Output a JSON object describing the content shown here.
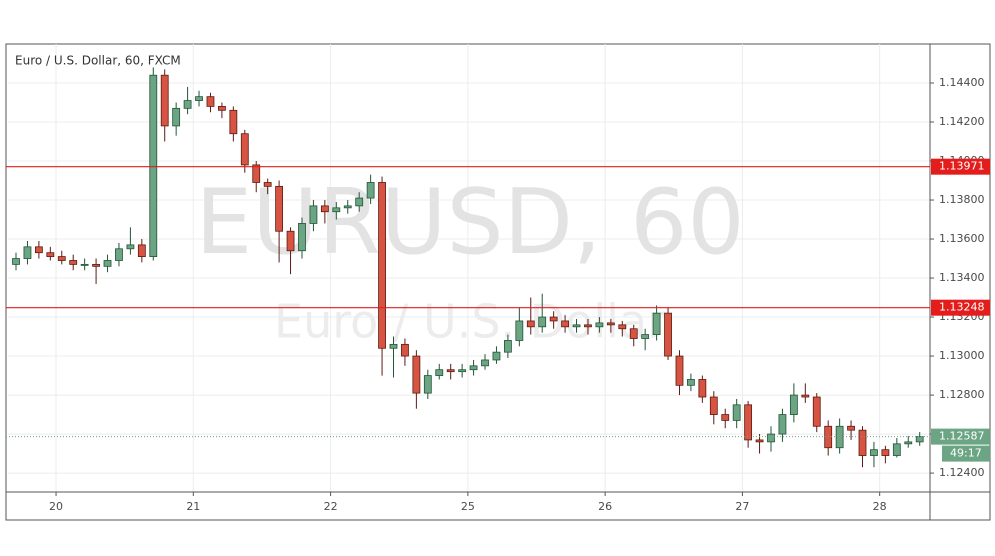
{
  "chart_data": {
    "type": "candlestick",
    "title": "Euro / U.S. Dollar, 60, FXCM",
    "watermark": [
      "EURUSD, 60",
      "Euro / U.S. Dollar"
    ],
    "x": [
      -7,
      -5,
      -3,
      -1,
      1,
      3,
      5,
      7,
      9,
      11,
      13,
      15,
      17,
      19,
      21,
      23,
      25,
      27,
      29,
      31,
      33,
      35,
      37,
      39,
      41,
      43,
      45,
      47,
      49,
      51,
      53,
      55,
      57,
      59,
      61,
      63,
      65,
      67,
      69,
      71,
      73,
      75,
      77,
      79,
      81,
      83,
      85,
      87,
      89,
      91,
      93,
      95,
      97,
      99,
      101,
      103,
      105,
      107,
      109,
      111,
      113,
      115,
      117,
      119,
      121,
      123,
      125,
      127,
      129,
      131,
      133,
      135,
      137,
      139,
      141,
      143,
      145,
      147,
      149,
      151
    ],
    "open": [
      1.1347,
      1.135,
      1.1356,
      1.1353,
      1.1351,
      1.1349,
      1.1347,
      1.1347,
      1.1346,
      1.1349,
      1.1355,
      1.1357,
      1.1351,
      1.1444,
      1.1418,
      1.1427,
      1.1431,
      1.1433,
      1.1428,
      1.1426,
      1.1414,
      1.1398,
      1.1389,
      1.1387,
      1.1364,
      1.1354,
      1.1368,
      1.1377,
      1.1374,
      1.1376,
      1.1377,
      1.1381,
      1.1389,
      1.1304,
      1.1306,
      1.13,
      1.1281,
      1.129,
      1.1293,
      1.1292,
      1.1293,
      1.1295,
      1.1298,
      1.1302,
      1.1308,
      1.1318,
      1.1315,
      1.132,
      1.1318,
      1.1315,
      1.1316,
      1.1315,
      1.1317,
      1.1316,
      1.1314,
      1.1309,
      1.1311,
      1.1322,
      1.13,
      1.1285,
      1.1288,
      1.1279,
      1.127,
      1.1267,
      1.1275,
      1.1257,
      1.1256,
      1.126,
      1.127,
      1.128,
      1.1279,
      1.1264,
      1.1253,
      1.1264,
      1.1262,
      1.1249,
      1.1252,
      1.1249,
      1.1255,
      1.1256
    ],
    "high": [
      1.1353,
      1.1359,
      1.1359,
      1.1356,
      1.1354,
      1.1352,
      1.135,
      1.135,
      1.1352,
      1.1358,
      1.1366,
      1.136,
      1.1448,
      1.1447,
      1.143,
      1.1438,
      1.1436,
      1.1435,
      1.143,
      1.1428,
      1.1416,
      1.14,
      1.1391,
      1.139,
      1.1366,
      1.1371,
      1.138,
      1.138,
      1.1379,
      1.138,
      1.1384,
      1.1393,
      1.1392,
      1.131,
      1.1309,
      1.1303,
      1.1293,
      1.1296,
      1.1296,
      1.1296,
      1.1298,
      1.1301,
      1.1305,
      1.1311,
      1.1325,
      1.133,
      1.1332,
      1.1323,
      1.1321,
      1.1319,
      1.1319,
      1.132,
      1.1319,
      1.1318,
      1.1316,
      1.1314,
      1.1326,
      1.1325,
      1.1303,
      1.1291,
      1.129,
      1.1282,
      1.1273,
      1.1278,
      1.1277,
      1.126,
      1.1264,
      1.1273,
      1.1286,
      1.1286,
      1.1281,
      1.1267,
      1.1268,
      1.1267,
      1.1264,
      1.1256,
      1.1254,
      1.1258,
      1.1259,
      1.1261
    ],
    "low": [
      1.1344,
      1.1347,
      1.135,
      1.1349,
      1.1347,
      1.1344,
      1.1344,
      1.1337,
      1.1343,
      1.1346,
      1.1352,
      1.1348,
      1.1349,
      1.141,
      1.1413,
      1.1424,
      1.1428,
      1.1425,
      1.1422,
      1.141,
      1.1394,
      1.1384,
      1.1383,
      1.1348,
      1.1342,
      1.135,
      1.1364,
      1.1368,
      1.137,
      1.1373,
      1.1374,
      1.1378,
      1.129,
      1.1289,
      1.1295,
      1.1273,
      1.1278,
      1.1288,
      1.1288,
      1.1289,
      1.129,
      1.1293,
      1.1296,
      1.1299,
      1.1305,
      1.1311,
      1.1312,
      1.1314,
      1.1312,
      1.1312,
      1.1311,
      1.1312,
      1.1312,
      1.131,
      1.1305,
      1.1303,
      1.1308,
      1.1298,
      1.128,
      1.1282,
      1.1276,
      1.1265,
      1.1263,
      1.1263,
      1.1253,
      1.125,
      1.1251,
      1.1256,
      1.1266,
      1.1276,
      1.1261,
      1.1249,
      1.125,
      1.1257,
      1.1243,
      1.1243,
      1.1245,
      1.1248,
      1.1253,
      1.1254
    ],
    "close": [
      1.135,
      1.1356,
      1.1353,
      1.1351,
      1.1349,
      1.1347,
      1.1347,
      1.1346,
      1.1349,
      1.1355,
      1.1357,
      1.1351,
      1.1444,
      1.1418,
      1.1427,
      1.1431,
      1.1433,
      1.1428,
      1.1426,
      1.1414,
      1.1398,
      1.1389,
      1.1387,
      1.1364,
      1.1354,
      1.1368,
      1.1377,
      1.1374,
      1.1376,
      1.1377,
      1.1381,
      1.1389,
      1.1304,
      1.1306,
      1.13,
      1.1281,
      1.129,
      1.1293,
      1.1292,
      1.1293,
      1.1295,
      1.1298,
      1.1302,
      1.1308,
      1.1318,
      1.1315,
      1.132,
      1.1318,
      1.1315,
      1.1316,
      1.1315,
      1.1317,
      1.1316,
      1.1314,
      1.1309,
      1.1311,
      1.1322,
      1.13,
      1.1285,
      1.1288,
      1.1279,
      1.127,
      1.1267,
      1.1275,
      1.1257,
      1.1256,
      1.126,
      1.127,
      1.128,
      1.1279,
      1.1264,
      1.1253,
      1.1264,
      1.1262,
      1.1249,
      1.1252,
      1.1249,
      1.1255,
      1.1256,
      1.12587
    ],
    "up_color": "#6ba583",
    "down_color": "#d75442",
    "xlim": [
      -8.4,
      152.8
    ],
    "xticks": [
      {
        "value": 0,
        "label": "20"
      },
      {
        "value": 24,
        "label": "21"
      },
      {
        "value": 48,
        "label": "22"
      },
      {
        "value": 72,
        "label": "25"
      },
      {
        "value": 96,
        "label": "26"
      },
      {
        "value": 120,
        "label": "27"
      },
      {
        "value": 144,
        "label": "28"
      }
    ],
    "ylim": [
      1.12303,
      1.146
    ],
    "yticks": [
      {
        "value": 1.124,
        "label": "1.12400"
      },
      {
        "value": 1.126,
        "label": "1.12600"
      },
      {
        "value": 1.128,
        "label": "1.12800"
      },
      {
        "value": 1.13,
        "label": "1.13000"
      },
      {
        "value": 1.132,
        "label": "1.13200"
      },
      {
        "value": 1.134,
        "label": "1.13400"
      },
      {
        "value": 1.136,
        "label": "1.13600"
      },
      {
        "value": 1.138,
        "label": "1.13800"
      },
      {
        "value": 1.14,
        "label": "1.14000"
      },
      {
        "value": 1.142,
        "label": "1.14200"
      },
      {
        "value": 1.144,
        "label": "1.14400"
      }
    ],
    "grid": true,
    "levels": [
      {
        "value": 1.13971,
        "label": "1.13971",
        "color": "#e31c1c"
      },
      {
        "value": 1.13248,
        "label": "1.13248",
        "color": "#e31c1c"
      }
    ],
    "last_price": {
      "value": 1.12587,
      "label": "1.12587",
      "color": "#6ba583"
    },
    "countdown": "49:17"
  }
}
